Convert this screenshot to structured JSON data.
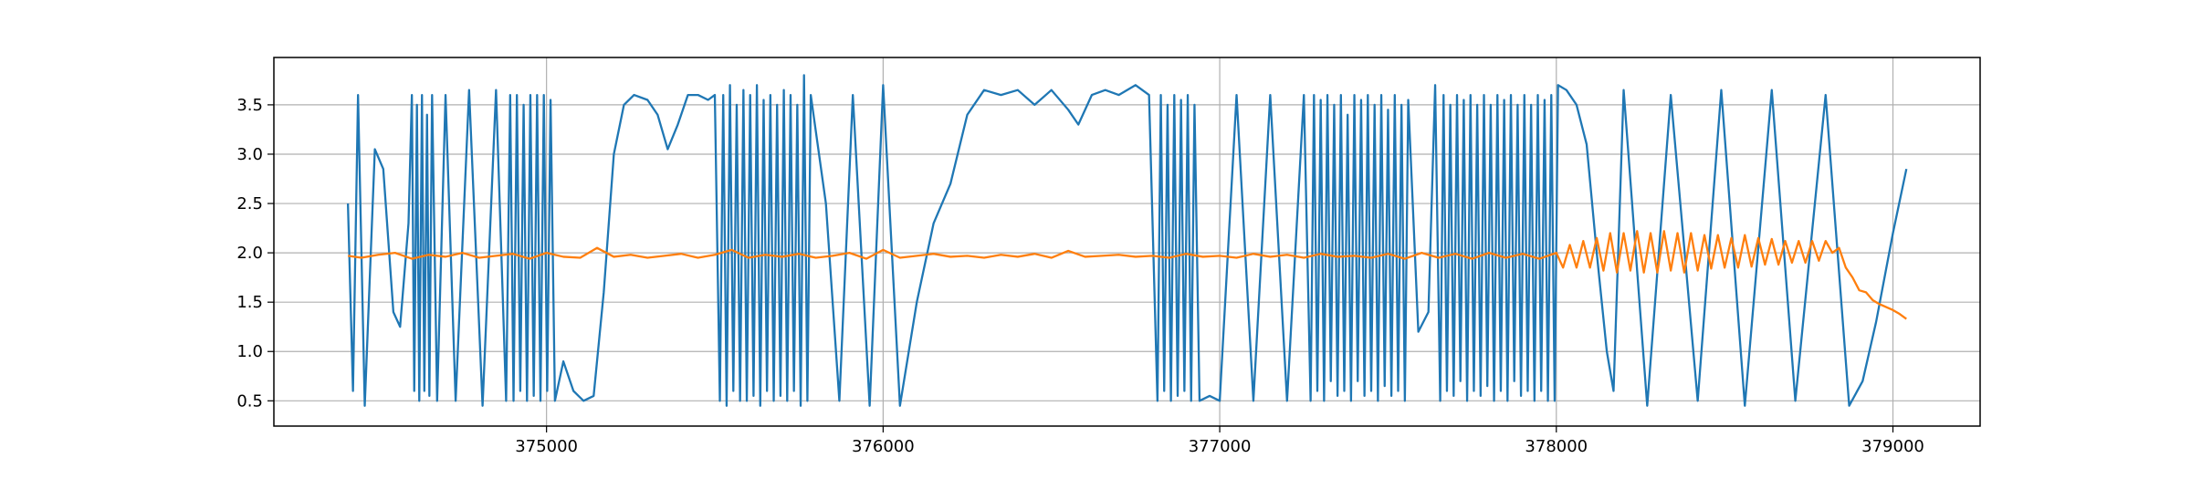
{
  "chart_data": {
    "type": "line",
    "grid": true,
    "xlim": [
      374190,
      379259
    ],
    "ylim": [
      0.244,
      3.98
    ],
    "xticks": [
      375000,
      376000,
      377000,
      378000,
      379000
    ],
    "yticks": [
      0.5,
      {
        "value": 1,
        "label": "1.0"
      },
      1.5,
      {
        "value": 2,
        "label": "2.0"
      },
      2.5,
      {
        "value": 3,
        "label": "3.0"
      },
      3.5
    ],
    "series": [
      {
        "color": "#1f77b4",
        "x": [
          374410,
          374425,
          374440,
          374460,
          374490,
          374515,
          374545,
          374565,
          374590,
          374600,
          374607,
          374615,
          374622,
          374630,
          374637,
          374645,
          374652,
          374660,
          374675,
          374700,
          374730,
          374770,
          374810,
          374850,
          374880,
          374892,
          374902,
          374912,
          374922,
          374932,
          374942,
          374952,
          374962,
          374972,
          374982,
          374992,
          375002,
          375012,
          375025,
          375050,
          375080,
          375110,
          375140,
          375170,
          375200,
          375230,
          375260,
          375300,
          375330,
          375360,
          375390,
          375420,
          375450,
          375480,
          375500,
          375515,
          375525,
          375535,
          375545,
          375555,
          375565,
          375575,
          375585,
          375595,
          375605,
          375615,
          375625,
          375635,
          375645,
          375655,
          375665,
          375675,
          375685,
          375695,
          375705,
          375715,
          375725,
          375735,
          375745,
          375755,
          375765,
          375775,
          375785,
          375830,
          375870,
          375910,
          375960,
          376000,
          376050,
          376100,
          376150,
          376200,
          376250,
          376300,
          376350,
          376400,
          376450,
          376500,
          376550,
          376580,
          376620,
          376660,
          376700,
          376750,
          376790,
          376815,
          376825,
          376835,
          376845,
          376855,
          376865,
          376875,
          376885,
          376895,
          376905,
          376915,
          376925,
          376940,
          376970,
          377000,
          377050,
          377100,
          377150,
          377200,
          377250,
          377270,
          377280,
          377290,
          377300,
          377310,
          377320,
          377330,
          377340,
          377350,
          377360,
          377370,
          377380,
          377390,
          377400,
          377410,
          377420,
          377430,
          377440,
          377450,
          377460,
          377470,
          377480,
          377490,
          377500,
          377510,
          377520,
          377530,
          377540,
          377550,
          377560,
          377590,
          377620,
          377640,
          377655,
          377665,
          377675,
          377685,
          377695,
          377705,
          377715,
          377725,
          377735,
          377745,
          377755,
          377765,
          377775,
          377785,
          377795,
          377805,
          377815,
          377825,
          377835,
          377845,
          377855,
          377865,
          377875,
          377885,
          377895,
          377905,
          377915,
          377925,
          377935,
          377945,
          377955,
          377965,
          377975,
          377985,
          377995,
          378005,
          378030,
          378060,
          378090,
          378120,
          378150,
          378170,
          378200,
          378270,
          378340,
          378420,
          378490,
          378560,
          378640,
          378710,
          378800,
          378870,
          378910,
          378950,
          379000,
          379040
        ],
        "values": [
          2.5,
          0.6,
          3.6,
          0.45,
          3.05,
          2.85,
          1.4,
          1.25,
          2.3,
          3.6,
          0.6,
          3.5,
          0.5,
          3.6,
          0.6,
          3.4,
          0.55,
          3.6,
          0.5,
          3.6,
          0.5,
          3.65,
          0.45,
          3.65,
          0.5,
          3.6,
          0.5,
          3.6,
          0.6,
          3.5,
          0.5,
          3.6,
          0.55,
          3.6,
          0.5,
          3.6,
          0.6,
          3.55,
          0.5,
          0.9,
          0.6,
          0.5,
          0.55,
          1.6,
          3.0,
          3.5,
          3.6,
          3.55,
          3.4,
          3.05,
          3.3,
          3.6,
          3.6,
          3.55,
          3.6,
          0.5,
          3.6,
          0.45,
          3.7,
          0.6,
          3.5,
          0.5,
          3.65,
          0.5,
          3.6,
          0.55,
          3.7,
          0.45,
          3.55,
          0.6,
          3.6,
          0.5,
          3.5,
          0.55,
          3.65,
          0.5,
          3.6,
          0.6,
          3.5,
          0.45,
          3.8,
          0.5,
          3.6,
          2.5,
          0.5,
          3.6,
          0.45,
          3.7,
          0.45,
          1.5,
          2.3,
          2.7,
          3.4,
          3.65,
          3.6,
          3.65,
          3.5,
          3.65,
          3.45,
          3.3,
          3.6,
          3.65,
          3.6,
          3.7,
          3.6,
          0.5,
          3.6,
          0.6,
          3.5,
          0.5,
          3.6,
          0.55,
          3.55,
          0.6,
          3.6,
          0.5,
          3.5,
          0.5,
          0.55,
          0.5,
          3.6,
          0.5,
          3.6,
          0.5,
          3.6,
          0.5,
          3.6,
          0.6,
          3.55,
          0.5,
          3.6,
          0.7,
          3.5,
          0.55,
          3.6,
          0.6,
          3.4,
          0.5,
          3.6,
          0.7,
          3.55,
          0.55,
          3.6,
          0.6,
          3.5,
          0.5,
          3.6,
          0.65,
          3.45,
          0.55,
          3.6,
          0.6,
          3.5,
          0.5,
          3.55,
          1.2,
          1.4,
          3.7,
          0.5,
          3.6,
          0.6,
          3.5,
          0.55,
          3.6,
          0.7,
          3.55,
          0.5,
          3.6,
          0.6,
          3.5,
          0.55,
          3.6,
          0.65,
          3.5,
          0.5,
          3.6,
          0.6,
          3.55,
          0.5,
          3.6,
          0.7,
          3.5,
          0.55,
          3.6,
          0.6,
          3.5,
          0.5,
          3.6,
          0.6,
          3.55,
          0.5,
          3.6,
          0.5,
          3.7,
          3.65,
          3.5,
          3.1,
          2.0,
          1.0,
          0.6,
          3.65,
          0.45,
          3.6,
          0.5,
          3.65,
          0.45,
          3.65,
          0.5,
          3.6,
          0.45,
          0.7,
          1.3,
          2.2,
          2.85
        ]
      },
      {
        "color": "#ff7f0e",
        "x": [
          374410,
          374450,
          374500,
          374550,
          374600,
          374650,
          374700,
          374750,
          374800,
          374850,
          374900,
          374950,
          375000,
          375050,
          375100,
          375150,
          375200,
          375250,
          375300,
          375350,
          375400,
          375450,
          375500,
          375550,
          375600,
          375650,
          375700,
          375750,
          375800,
          375850,
          375900,
          375950,
          376000,
          376050,
          376100,
          376150,
          376200,
          376250,
          376300,
          376350,
          376400,
          376450,
          376500,
          376550,
          376600,
          376650,
          376700,
          376750,
          376800,
          376850,
          376900,
          376950,
          377000,
          377050,
          377100,
          377150,
          377200,
          377250,
          377300,
          377350,
          377400,
          377450,
          377500,
          377550,
          377600,
          377650,
          377700,
          377750,
          377800,
          377850,
          377900,
          377950,
          378000,
          378020,
          378040,
          378060,
          378080,
          378100,
          378120,
          378140,
          378160,
          378180,
          378200,
          378220,
          378240,
          378260,
          378280,
          378300,
          378320,
          378340,
          378360,
          378380,
          378400,
          378420,
          378440,
          378460,
          378480,
          378500,
          378520,
          378540,
          378560,
          378580,
          378600,
          378620,
          378640,
          378660,
          378680,
          378700,
          378720,
          378740,
          378760,
          378780,
          378800,
          378820,
          378840,
          378860,
          378880,
          378900,
          378920,
          378940,
          378960,
          378980,
          379000,
          379020,
          379040
        ],
        "values": [
          1.97,
          1.95,
          1.98,
          2.0,
          1.94,
          1.98,
          1.96,
          2.0,
          1.95,
          1.97,
          1.99,
          1.94,
          2.0,
          1.96,
          1.95,
          2.05,
          1.96,
          1.98,
          1.95,
          1.97,
          1.99,
          1.95,
          1.98,
          2.03,
          1.95,
          1.98,
          1.96,
          1.99,
          1.95,
          1.97,
          2.0,
          1.94,
          2.03,
          1.95,
          1.97,
          1.99,
          1.96,
          1.97,
          1.95,
          1.98,
          1.96,
          1.99,
          1.95,
          2.02,
          1.96,
          1.97,
          1.98,
          1.96,
          1.97,
          1.95,
          1.99,
          1.96,
          1.97,
          1.95,
          1.99,
          1.96,
          1.98,
          1.95,
          1.99,
          1.96,
          1.97,
          1.95,
          1.99,
          1.94,
          2.0,
          1.95,
          1.99,
          1.94,
          2.0,
          1.95,
          1.99,
          1.94,
          2.0,
          1.85,
          2.08,
          1.85,
          2.12,
          1.85,
          2.15,
          1.82,
          2.2,
          1.8,
          2.2,
          1.82,
          2.22,
          1.8,
          2.2,
          1.8,
          2.22,
          1.82,
          2.2,
          1.8,
          2.2,
          1.82,
          2.18,
          1.84,
          2.18,
          1.85,
          2.15,
          1.85,
          2.18,
          1.86,
          2.15,
          1.88,
          2.14,
          1.88,
          2.12,
          1.9,
          2.12,
          1.9,
          2.12,
          1.92,
          2.12,
          2.0,
          2.05,
          1.85,
          1.75,
          1.62,
          1.6,
          1.52,
          1.48,
          1.45,
          1.42,
          1.38,
          1.33
        ]
      }
    ]
  }
}
